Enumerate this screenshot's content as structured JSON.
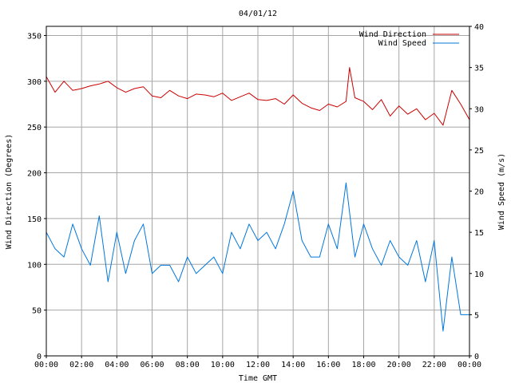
{
  "chart_data": {
    "type": "line",
    "title": "04/01/12",
    "xlabel": "Time GMT",
    "ylabel_left": "Wind Direction (Degrees)",
    "ylabel_right": "Wind Speed (m/s)",
    "x_ticks": [
      "00:00",
      "02:00",
      "04:00",
      "06:00",
      "08:00",
      "10:00",
      "12:00",
      "14:00",
      "16:00",
      "18:00",
      "20:00",
      "22:00",
      "00:00"
    ],
    "x_range_hours": [
      0,
      24
    ],
    "y_left": {
      "min": 0,
      "max": 360,
      "ticks": [
        0,
        50,
        100,
        150,
        200,
        250,
        300,
        350
      ]
    },
    "y_right": {
      "min": 0,
      "max": 40,
      "ticks": [
        0,
        5,
        10,
        15,
        20,
        25,
        30,
        35,
        40
      ]
    },
    "grid": true,
    "legend_position": "top-right",
    "series": [
      {
        "name": "Wind Direction",
        "axis": "left",
        "color": "#cc0000",
        "x": [
          0,
          0.5,
          1,
          1.5,
          2,
          2.5,
          3,
          3.5,
          4,
          4.5,
          5,
          5.5,
          6,
          6.5,
          7,
          7.5,
          8,
          8.5,
          9,
          9.5,
          10,
          10.5,
          11,
          11.5,
          12,
          12.5,
          13,
          13.5,
          14,
          14.5,
          15,
          15.5,
          16,
          16.5,
          17,
          17.2,
          17.5,
          18,
          18.5,
          19,
          19.5,
          20,
          20.5,
          21,
          21.5,
          22,
          22.5,
          23,
          23.5,
          24
        ],
        "values": [
          305,
          288,
          300,
          290,
          292,
          295,
          297,
          300,
          293,
          288,
          292,
          294,
          284,
          282,
          290,
          284,
          281,
          286,
          285,
          283,
          287,
          279,
          283,
          287,
          280,
          279,
          281,
          275,
          285,
          276,
          271,
          268,
          275,
          272,
          278,
          315,
          282,
          278,
          269,
          280,
          262,
          273,
          264,
          270,
          258,
          265,
          252,
          290,
          275,
          258
        ]
      },
      {
        "name": "Wind Speed",
        "axis": "right",
        "color": "#0077dd",
        "x": [
          0,
          0.5,
          1,
          1.5,
          2,
          2.5,
          3,
          3.5,
          4,
          4.5,
          5,
          5.5,
          6,
          6.5,
          7,
          7.5,
          8,
          8.5,
          9,
          9.5,
          10,
          10.5,
          11,
          11.5,
          12,
          12.5,
          13,
          13.5,
          14,
          14.5,
          15,
          15.5,
          16,
          16.5,
          17,
          17.5,
          18,
          18.5,
          19,
          19.5,
          20,
          20.5,
          21,
          21.5,
          22,
          22.5,
          23,
          23.5,
          24
        ],
        "values": [
          15,
          13,
          12,
          16,
          13,
          11,
          17,
          9,
          15,
          10,
          14,
          16,
          10,
          11,
          11,
          9,
          12,
          10,
          11,
          12,
          10,
          15,
          13,
          16,
          14,
          15,
          13,
          16,
          20,
          14,
          12,
          12,
          16,
          13,
          21,
          12,
          16,
          13,
          11,
          14,
          12,
          11,
          14,
          9,
          14,
          3,
          12,
          5,
          5
        ]
      }
    ]
  }
}
